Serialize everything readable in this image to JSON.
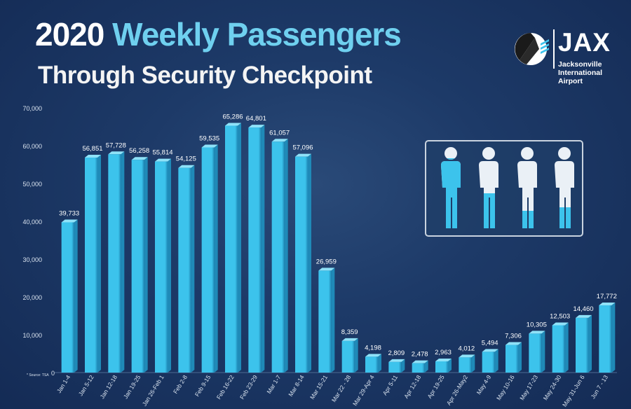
{
  "header": {
    "title_part1": "2020",
    "title_part2": "Weekly Passengers",
    "subtitle": "Through Security Checkpoint"
  },
  "logo": {
    "name": "JAX",
    "line1": "Jacksonville",
    "line2": "International",
    "line3": "Airport",
    "icon": "airplane-tail-icon"
  },
  "source_note": "* Source: TSA",
  "people_graphic": {
    "icon": "person-icon",
    "fill_levels": [
      1.0,
      0.5,
      0.25,
      0.3
    ]
  },
  "colors": {
    "bar": "#3cc3ec",
    "bar_dark": "#1f8ab8",
    "title_accent": "#6fd0ef",
    "background": "#1d3a68"
  },
  "chart_data": {
    "type": "bar",
    "title": "2020 Weekly Passengers",
    "subtitle": "Through Security Checkpoint",
    "categories": [
      "Jan 1-4",
      "Jan 5-12",
      "Jan 12-18",
      "Jan 19-25",
      "Jan 26-Feb 1",
      "Feb 2-8",
      "Feb 9-15",
      "Feb 16-22",
      "Feb 23-29",
      "Mar 1-7",
      "Mar 8-14",
      "Mar 15-21",
      "Mar 22 - 28",
      "Mar 29-Apr 4",
      "Apr 5-11",
      "Apr 12-18",
      "Apr 19-25",
      "Apr 26-May2",
      "May 4-9",
      "May 10-16",
      "May 17-23",
      "May 24-30",
      "May 31-Jun 6",
      "Jun 7 - 13"
    ],
    "values": [
      39733,
      56851,
      57728,
      56258,
      55814,
      54125,
      59535,
      65286,
      64801,
      61057,
      57096,
      26959,
      8359,
      4198,
      2809,
      2478,
      2963,
      4012,
      5494,
      7306,
      10305,
      12503,
      14460,
      17772
    ],
    "value_labels": [
      "39,733",
      "56,851",
      "57,728",
      "56,258",
      "55,814",
      "54,125",
      "59,535",
      "65,286",
      "64,801",
      "61,057",
      "57,096",
      "26,959",
      "8,359",
      "4,198",
      "2,809",
      "2,478",
      "2,963",
      "4,012",
      "5,494",
      "7,306",
      "10,305",
      "12,503",
      "14,460",
      "17,772"
    ],
    "y_ticks": [
      0,
      10000,
      20000,
      30000,
      40000,
      50000,
      60000,
      70000
    ],
    "y_tick_labels": [
      "0",
      "10,000",
      "20,000",
      "30,000",
      "40,000",
      "50,000",
      "60,000",
      "70,000"
    ],
    "ylim": [
      0,
      70000
    ],
    "grid": false,
    "legend": "none"
  }
}
